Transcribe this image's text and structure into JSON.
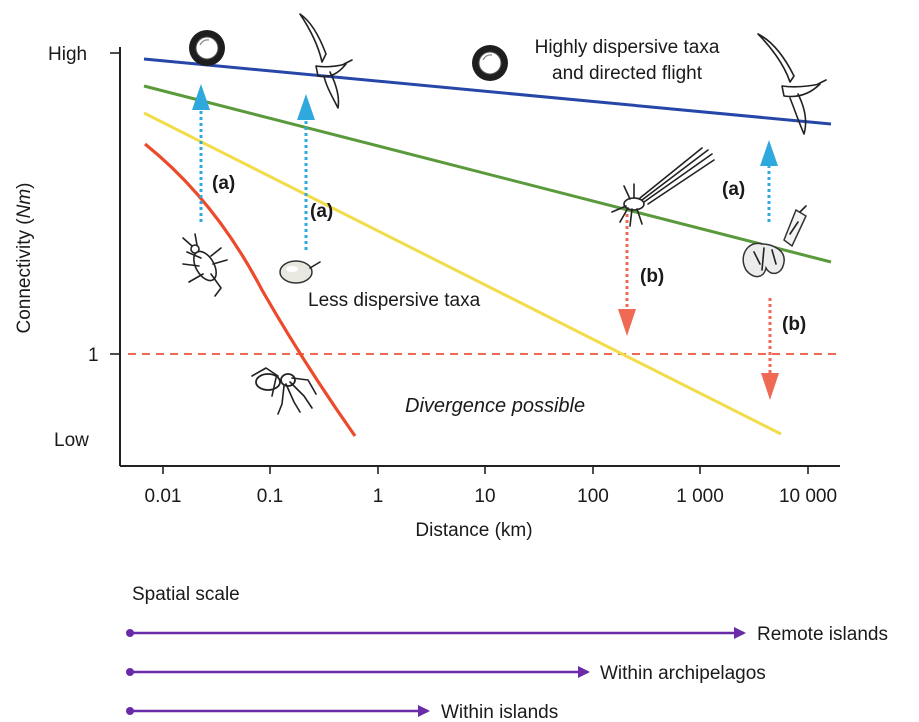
{
  "chart": {
    "y_high_label": "High",
    "y_low_label": "Low",
    "y_one_label": "1",
    "y_axis_label": "Connectivity (",
    "y_axis_label_italic": "Nm",
    "y_axis_label_close": ")",
    "x_axis_label": "Distance (km)",
    "x_ticks": [
      "0.01",
      "0.1",
      "1",
      "10",
      "100",
      "1 000",
      "10 000"
    ],
    "annot_high_line1": "Highly dispersive taxa",
    "annot_high_line2": "and directed flight",
    "annot_less": "Less dispersive taxa",
    "annot_divergence": "Divergence possible",
    "arrow_a": "(a)",
    "arrow_b": "(b)"
  },
  "scale": {
    "title": "Spatial scale",
    "arrows": [
      "Remote islands",
      "Within archipelagos",
      "Within islands"
    ]
  },
  "colors": {
    "blue": "#2646a8",
    "green": "#5a9a3c",
    "yellow": "#f2dc4a",
    "red": "#ec4a2a",
    "cyan": "#2fa8dd",
    "salmon": "#ee6a55",
    "purple": "#6a2ba8"
  },
  "icons": [
    "coconut-icon",
    "bird-icon",
    "beetle-icon",
    "seed-icon",
    "spider-icon",
    "moth-icon",
    "leaf-icon"
  ]
}
